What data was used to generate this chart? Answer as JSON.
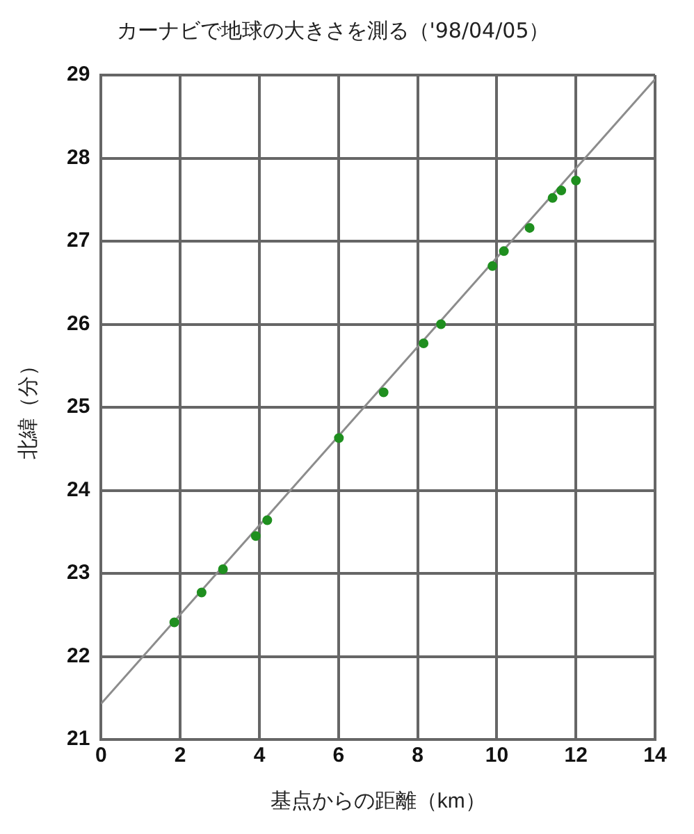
{
  "chart_data": {
    "type": "scatter",
    "title": "カーナビで地球の大きさを測る（'98/04/05）",
    "xlabel": "基点からの距離（km）",
    "ylabel": "北緯（分）",
    "xlim": [
      0,
      14
    ],
    "xticks": [
      0,
      2,
      4,
      6,
      8,
      10,
      12,
      14
    ],
    "ylim": [
      21,
      29
    ],
    "yticks": [
      21,
      22,
      23,
      24,
      25,
      26,
      27,
      28,
      29
    ],
    "grid": true,
    "legend": false,
    "series": [
      {
        "type": "line",
        "color": "#8c8c8c",
        "x": [
          0,
          14
        ],
        "values": [
          21.43,
          28.95
        ],
        "marker": "none",
        "line_style": "solid"
      },
      {
        "type": "scatter",
        "color": "#1f8f1f",
        "marker": "circle",
        "x": [
          1.85,
          2.54,
          3.08,
          3.91,
          4.2,
          6.01,
          7.14,
          8.15,
          8.59,
          9.89,
          10.18,
          10.83,
          11.41,
          11.63,
          12.0
        ],
        "values": [
          22.41,
          22.77,
          23.05,
          23.45,
          23.64,
          24.63,
          25.18,
          25.77,
          26.0,
          26.7,
          26.88,
          27.16,
          27.52,
          27.61,
          27.73
        ]
      }
    ]
  }
}
